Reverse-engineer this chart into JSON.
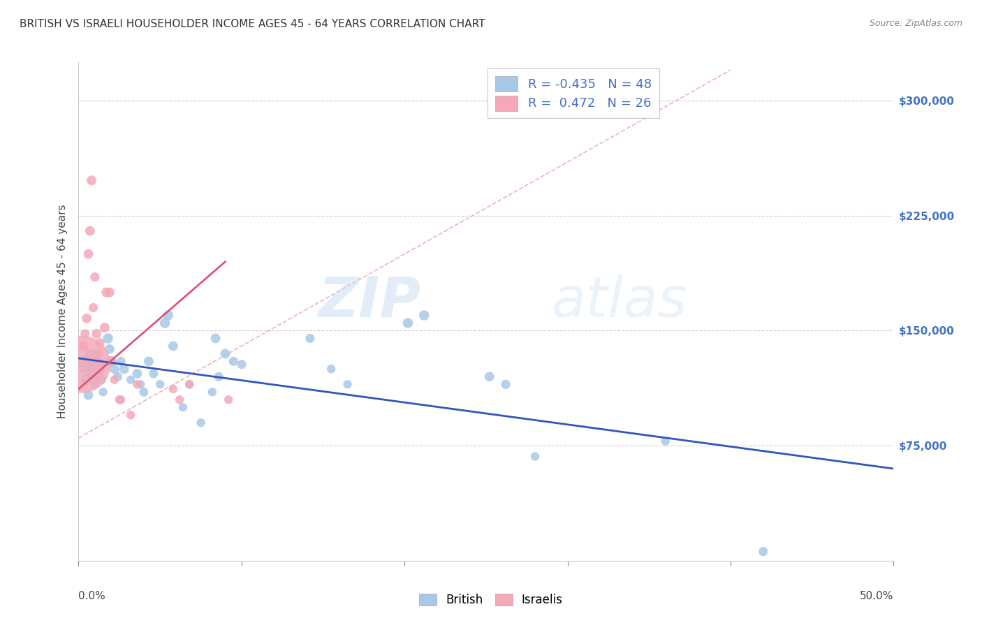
{
  "title": "BRITISH VS ISRAELI HOUSEHOLDER INCOME AGES 45 - 64 YEARS CORRELATION CHART",
  "source": "Source: ZipAtlas.com",
  "ylabel": "Householder Income Ages 45 - 64 years",
  "ytick_labels": [
    "$75,000",
    "$150,000",
    "$225,000",
    "$300,000"
  ],
  "ytick_vals": [
    75000,
    150000,
    225000,
    300000
  ],
  "ylim": [
    0,
    325000
  ],
  "xlim": [
    0.0,
    0.5
  ],
  "r_british": -0.435,
  "n_british": 48,
  "r_israeli": 0.472,
  "n_israeli": 26,
  "british_color": "#a8c8e8",
  "israeli_color": "#f4a8b8",
  "british_line_color": "#3355bb",
  "israeli_line_color": "#dd5577",
  "diag_line_color": "#cccccc",
  "watermark_zip": "ZIP",
  "watermark_atlas": "atlas",
  "british_points": [
    [
      0.003,
      128000,
      300
    ],
    [
      0.005,
      118000,
      150
    ],
    [
      0.006,
      108000,
      100
    ],
    [
      0.007,
      135000,
      120
    ],
    [
      0.008,
      128000,
      180
    ],
    [
      0.009,
      122000,
      130
    ],
    [
      0.01,
      115000,
      80
    ],
    [
      0.011,
      130000,
      160
    ],
    [
      0.012,
      120000,
      110
    ],
    [
      0.013,
      125000,
      100
    ],
    [
      0.014,
      118000,
      90
    ],
    [
      0.015,
      110000,
      80
    ],
    [
      0.018,
      145000,
      110
    ],
    [
      0.019,
      138000,
      100
    ],
    [
      0.02,
      130000,
      120
    ],
    [
      0.022,
      125000,
      100
    ],
    [
      0.024,
      120000,
      90
    ],
    [
      0.026,
      130000,
      90
    ],
    [
      0.028,
      125000,
      100
    ],
    [
      0.032,
      118000,
      80
    ],
    [
      0.036,
      122000,
      100
    ],
    [
      0.038,
      115000,
      80
    ],
    [
      0.04,
      110000,
      90
    ],
    [
      0.043,
      130000,
      100
    ],
    [
      0.046,
      122000,
      90
    ],
    [
      0.05,
      115000,
      80
    ],
    [
      0.053,
      155000,
      110
    ],
    [
      0.055,
      160000,
      110
    ],
    [
      0.058,
      140000,
      100
    ],
    [
      0.064,
      100000,
      80
    ],
    [
      0.068,
      115000,
      80
    ],
    [
      0.075,
      90000,
      80
    ],
    [
      0.082,
      110000,
      80
    ],
    [
      0.084,
      145000,
      100
    ],
    [
      0.086,
      120000,
      90
    ],
    [
      0.09,
      135000,
      100
    ],
    [
      0.095,
      130000,
      90
    ],
    [
      0.1,
      128000,
      90
    ],
    [
      0.142,
      145000,
      90
    ],
    [
      0.155,
      125000,
      80
    ],
    [
      0.165,
      115000,
      80
    ],
    [
      0.202,
      155000,
      110
    ],
    [
      0.212,
      160000,
      110
    ],
    [
      0.252,
      120000,
      100
    ],
    [
      0.262,
      115000,
      90
    ],
    [
      0.28,
      68000,
      80
    ],
    [
      0.36,
      78000,
      80
    ],
    [
      0.42,
      6000,
      90
    ]
  ],
  "israeli_points": [
    [
      0.002,
      128000,
      3500
    ],
    [
      0.003,
      140000,
      100
    ],
    [
      0.004,
      148000,
      90
    ],
    [
      0.005,
      158000,
      100
    ],
    [
      0.006,
      200000,
      100
    ],
    [
      0.007,
      215000,
      100
    ],
    [
      0.008,
      248000,
      100
    ],
    [
      0.009,
      165000,
      90
    ],
    [
      0.01,
      185000,
      90
    ],
    [
      0.011,
      148000,
      100
    ],
    [
      0.012,
      135000,
      90
    ],
    [
      0.013,
      142000,
      100
    ],
    [
      0.014,
      128000,
      90
    ],
    [
      0.016,
      152000,
      100
    ],
    [
      0.017,
      175000,
      100
    ],
    [
      0.019,
      175000,
      100
    ],
    [
      0.02,
      130000,
      90
    ],
    [
      0.022,
      118000,
      80
    ],
    [
      0.025,
      105000,
      80
    ],
    [
      0.026,
      105000,
      80
    ],
    [
      0.032,
      95000,
      80
    ],
    [
      0.036,
      115000,
      80
    ],
    [
      0.058,
      112000,
      80
    ],
    [
      0.062,
      105000,
      80
    ],
    [
      0.068,
      115000,
      80
    ],
    [
      0.092,
      105000,
      80
    ]
  ],
  "british_line_x": [
    0.0,
    0.5
  ],
  "british_line_y": [
    132000,
    60000
  ],
  "israeli_line_x": [
    0.0,
    0.09
  ],
  "israeli_line_y": [
    112000,
    195000
  ],
  "diag_line_x": [
    0.0,
    0.4
  ],
  "diag_line_y": [
    80000,
    320000
  ]
}
